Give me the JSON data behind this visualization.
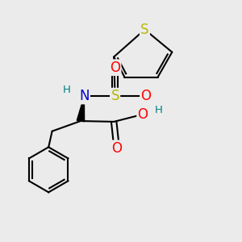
{
  "background_color": "#ebebeb",
  "figsize": [
    3.0,
    3.0
  ],
  "dpi": 100,
  "colors": {
    "S": "#b8b800",
    "O": "#ff0000",
    "N": "#0000cc",
    "C": "#000000",
    "H": "#008080",
    "bond": "#000000"
  }
}
